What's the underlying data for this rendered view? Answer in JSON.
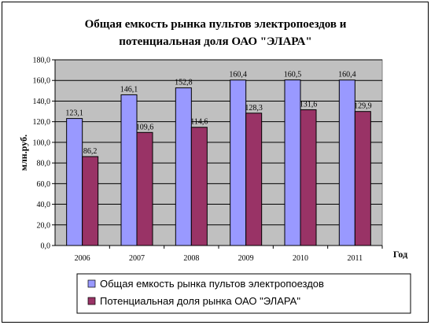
{
  "chart_data": {
    "type": "bar",
    "title_lines": [
      "Общая емкость рынка пультов электропоездов и",
      "потенциальная доля ОАО \"ЭЛАРА\""
    ],
    "ylabel": "млн.руб.",
    "xlabel": "Год",
    "categories": [
      "2006",
      "2007",
      "2008",
      "2009",
      "2010",
      "2011"
    ],
    "y_ticks": [
      "0,0",
      "20,0",
      "40,0",
      "60,0",
      "80,0",
      "100,0",
      "120,0",
      "140,0",
      "160,0",
      "180,0"
    ],
    "ylim": [
      0,
      180
    ],
    "grid": true,
    "legend_position": "bottom",
    "series": [
      {
        "name": "Общая емкость рынка пультов электропоездов",
        "color": "#9999ff",
        "values": [
          123.1,
          146.1,
          152.8,
          160.4,
          160.5,
          160.4
        ],
        "labels": [
          "123,1",
          "146,1",
          "152,8",
          "160,4",
          "160,5",
          "160,4"
        ]
      },
      {
        "name": "Потенциальная доля рынка ОАО \"ЭЛАРА\"",
        "color": "#993366",
        "values": [
          86.2,
          109.6,
          114.6,
          128.3,
          131.6,
          129.9
        ],
        "labels": [
          "86,2",
          "109,6",
          "114,6",
          "128,3",
          "131,6",
          "129,9"
        ]
      }
    ],
    "plot_background": "#c0c0c0"
  }
}
